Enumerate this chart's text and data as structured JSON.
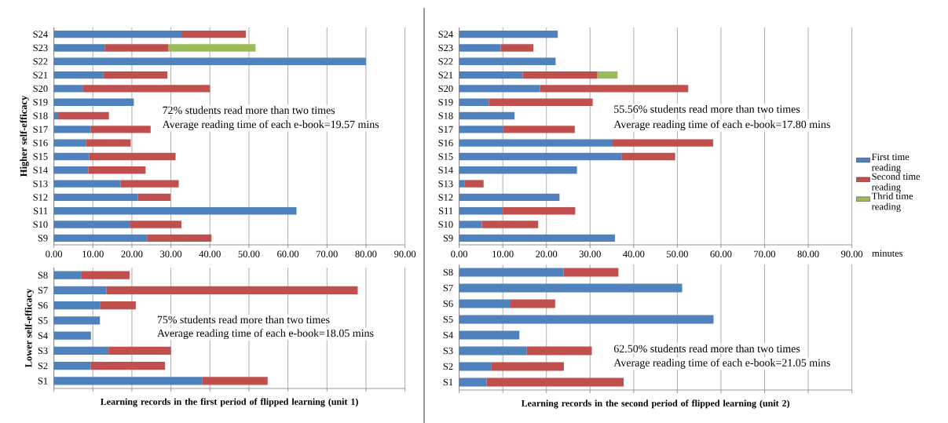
{
  "chart_data": [
    {
      "type": "bar",
      "orientation": "horizontal",
      "stacked": true,
      "ylabel": "Higher self-efficacy",
      "categories": [
        "S24",
        "S23",
        "S22",
        "S21",
        "S20",
        "S19",
        "S18",
        "S17",
        "S16",
        "S15",
        "S14",
        "S13",
        "S12",
        "S11",
        "S10",
        "S9"
      ],
      "series": [
        {
          "color": "#4f81bd",
          "values": [
            32.7,
            13.0,
            80.0,
            12.6,
            7.5,
            20.5,
            1.1,
            9.5,
            8.3,
            9.0,
            8.8,
            17.1,
            21.5,
            62.2,
            19.6,
            24.0
          ]
        },
        {
          "color": "#c0504d",
          "values": [
            16.5,
            16.4,
            null,
            16.5,
            32.5,
            null,
            13.0,
            15.3,
            11.4,
            22.2,
            14.7,
            14.9,
            8.4,
            null,
            13.1,
            16.4
          ]
        },
        {
          "color": "#9bbb59",
          "values": [
            null,
            22.3,
            null,
            null,
            null,
            null,
            null,
            null,
            null,
            null,
            null,
            null,
            null,
            null,
            null,
            null
          ]
        }
      ],
      "xlim": [
        0,
        90
      ],
      "xticks": [
        {
          "value": 0,
          "label": "0.00"
        },
        {
          "value": 10,
          "label": "10.00"
        },
        {
          "value": 20,
          "label": "20.00"
        },
        {
          "value": 30,
          "label": "30.00"
        },
        {
          "value": 40,
          "label": "40.00"
        },
        {
          "value": 50,
          "label": "50.00"
        },
        {
          "value": 60,
          "label": "60.00"
        },
        {
          "value": 70,
          "label": "70.00"
        },
        {
          "value": 80,
          "label": "80.00"
        },
        {
          "value": 90,
          "label": "90.00"
        }
      ],
      "grid": "x",
      "annotations": [
        "72% students read more than two times",
        "Average reading time of each e-book=19.57 mins"
      ]
    },
    {
      "type": "bar",
      "orientation": "horizontal",
      "stacked": true,
      "xlabel": "minutes",
      "legend": "right",
      "categories": [
        "S24",
        "S23",
        "S22",
        "S21",
        "S20",
        "S19",
        "S18",
        "S17",
        "S16",
        "S15",
        "S14",
        "S13",
        "S12",
        "S11",
        "S10",
        "S9"
      ],
      "series": [
        {
          "name": "First time reading",
          "color": "#4f81bd",
          "values": [
            22.6,
            9.5,
            22.1,
            14.6,
            18.5,
            6.8,
            12.7,
            10.1,
            35.0,
            37.3,
            27.0,
            1.3,
            23.0,
            10.0,
            5.2,
            35.7
          ]
        },
        {
          "name": "Second time reading",
          "color": "#c0504d",
          "values": [
            null,
            7.5,
            null,
            17.1,
            34.0,
            23.8,
            null,
            16.4,
            23.2,
            12.2,
            null,
            4.3,
            null,
            16.6,
            12.9,
            null
          ]
        },
        {
          "name": "Thrid time reading",
          "color": "#9bbb59",
          "values": [
            null,
            null,
            null,
            4.6,
            null,
            null,
            null,
            null,
            null,
            null,
            null,
            null,
            null,
            null,
            null,
            null
          ]
        }
      ],
      "xlim": [
        0,
        90
      ],
      "xticks": [
        {
          "value": 0,
          "label": "0.00"
        },
        {
          "value": 10,
          "label": "10.00"
        },
        {
          "value": 20,
          "label": "20.00"
        },
        {
          "value": 30,
          "label": "30.00"
        },
        {
          "value": 40,
          "label": "40.00"
        },
        {
          "value": 50,
          "label": "50.00"
        },
        {
          "value": 60,
          "label": "60.00"
        },
        {
          "value": 70,
          "label": "70.00"
        },
        {
          "value": 80,
          "label": "80.00"
        },
        {
          "value": 90,
          "label": "90.00"
        }
      ],
      "grid": "x",
      "annotations": [
        "55.56% students read more than two times",
        "Average reading time of each e-book=17.80 mins"
      ]
    },
    {
      "type": "bar",
      "orientation": "horizontal",
      "stacked": true,
      "ylabel": "Lower self-efficacy",
      "xlabel": "Learning records in the first period of flipped learning (unit 1)",
      "categories": [
        "S8",
        "S7",
        "S6",
        "S5",
        "S4",
        "S3",
        "S2",
        "S1"
      ],
      "series": [
        {
          "color": "#4f81bd",
          "values": [
            7.1,
            13.5,
            11.8,
            11.8,
            9.5,
            14.0,
            9.5,
            38.1
          ]
        },
        {
          "color": "#c0504d",
          "values": [
            12.3,
            64.4,
            9.2,
            null,
            null,
            16.0,
            19.0,
            16.7
          ]
        }
      ],
      "xlim": [
        0,
        90
      ],
      "xticks": [
        0,
        10,
        20,
        30,
        40,
        50,
        60,
        70,
        80,
        90
      ],
      "grid": "x",
      "tick_labels": "y",
      "annotations": [
        "75% students read more than two times",
        "Average reading time of each e-book=18.05 mins"
      ]
    },
    {
      "type": "bar",
      "orientation": "horizontal",
      "stacked": true,
      "xlabel": "Learning records in the second period of flipped learning (unit 2)",
      "categories": [
        "S8",
        "S7",
        "S6",
        "S5",
        "S4",
        "S3",
        "S2",
        "S1"
      ],
      "series": [
        {
          "color": "#4f81bd",
          "values": [
            23.9,
            51.1,
            11.6,
            58.3,
            13.8,
            15.5,
            7.3,
            6.3
          ]
        },
        {
          "color": "#c0504d",
          "values": [
            12.6,
            null,
            10.4,
            null,
            null,
            14.9,
            16.7,
            31.4
          ]
        }
      ],
      "xlim": [
        0,
        90
      ],
      "xticks": [
        0,
        10,
        20,
        30,
        40,
        50,
        60,
        70,
        80,
        90
      ],
      "grid": "x",
      "tick_labels": "y",
      "annotations": [
        "62.50% students read more than two times",
        "Average reading time of each e-book=21.05 mins"
      ]
    }
  ]
}
